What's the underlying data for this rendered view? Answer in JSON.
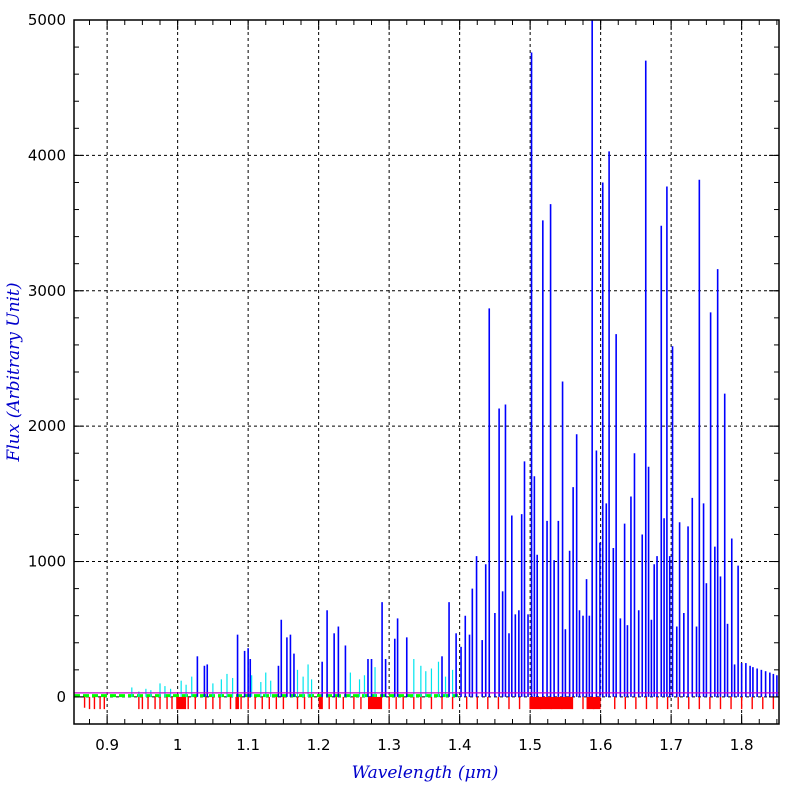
{
  "chart_data": {
    "type": "line",
    "xlabel": "Wavelength (μm)",
    "ylabel": "Flux (Arbitrary Unit)",
    "xlim": [
      0.853,
      1.853
    ],
    "ylim": [
      -200,
      5000
    ],
    "x_ticks": [
      0.9,
      1.0,
      1.1,
      1.2,
      1.3,
      1.4,
      1.5,
      1.6,
      1.7,
      1.8
    ],
    "x_tick_labels": [
      "0.9",
      "1",
      "1.1",
      "1.2",
      "1.3",
      "1.4",
      "1.5",
      "1.6",
      "1.7",
      "1.8"
    ],
    "y_ticks": [
      0,
      1000,
      2000,
      3000,
      4000,
      5000
    ],
    "y_tick_labels": [
      "0",
      "1000",
      "2000",
      "3000",
      "4000",
      "5000"
    ],
    "grid": true,
    "colors": {
      "emission_lines": "#0000ff",
      "faint_lines": "#00e5ee",
      "continuum": "#00ff00",
      "absorption_lines": "#ff0000",
      "reference_line": "#cc00cc",
      "axis_title": "#0000cc"
    },
    "reference_level": 30,
    "series": [
      {
        "style": "emission",
        "x": [
          1.028,
          1.038,
          1.042,
          1.085,
          1.095,
          1.1,
          1.103,
          1.143,
          1.147,
          1.155,
          1.16,
          1.165,
          1.205,
          1.212,
          1.222,
          1.228,
          1.238,
          1.27,
          1.275,
          1.29,
          1.295,
          1.308,
          1.312,
          1.325,
          1.375,
          1.385,
          1.395,
          1.402,
          1.408,
          1.414,
          1.418,
          1.424,
          1.432,
          1.437,
          1.442,
          1.45,
          1.456,
          1.461,
          1.465,
          1.47,
          1.474,
          1.479,
          1.484,
          1.488,
          1.492,
          1.497,
          1.502,
          1.506,
          1.51,
          1.518,
          1.524,
          1.529,
          1.534,
          1.54,
          1.546,
          1.55,
          1.556,
          1.561,
          1.566,
          1.57,
          1.575,
          1.58,
          1.584,
          1.588,
          1.594,
          1.599,
          1.603,
          1.608,
          1.612,
          1.618,
          1.622,
          1.628,
          1.634,
          1.638,
          1.643,
          1.648,
          1.654,
          1.659,
          1.664,
          1.668,
          1.672,
          1.676,
          1.68,
          1.686,
          1.69,
          1.694,
          1.698,
          1.702,
          1.708,
          1.712,
          1.718,
          1.724,
          1.73,
          1.736,
          1.74,
          1.746,
          1.75,
          1.756,
          1.762,
          1.766,
          1.77,
          1.776,
          1.78,
          1.786,
          1.79,
          1.795,
          1.8,
          1.806,
          1.812,
          1.816,
          1.822,
          1.828,
          1.834,
          1.84,
          1.845,
          1.85
        ],
        "y": [
          300,
          230,
          240,
          460,
          340,
          360,
          280,
          230,
          570,
          440,
          460,
          320,
          260,
          640,
          470,
          520,
          380,
          280,
          280,
          700,
          280,
          430,
          580,
          440,
          300,
          700,
          470,
          370,
          600,
          460,
          800,
          1040,
          420,
          980,
          2870,
          620,
          2130,
          780,
          2160,
          470,
          1340,
          610,
          640,
          1350,
          1740,
          610,
          4760,
          1630,
          1050,
          3520,
          1300,
          3640,
          1010,
          1300,
          2330,
          500,
          1080,
          1550,
          1940,
          640,
          600,
          870,
          600,
          5000,
          1820,
          1140,
          3800,
          1430,
          4030,
          1100,
          2680,
          580,
          1280,
          530,
          1480,
          1800,
          640,
          1200,
          4700,
          1700,
          570,
          980,
          1040,
          3480,
          1320,
          3770,
          1040,
          2590,
          520,
          1290,
          620,
          1260,
          1470,
          520,
          3820,
          1430,
          840,
          2840,
          1110,
          3160,
          890,
          2240,
          540,
          1170,
          240,
          970,
          250,
          250,
          230,
          220,
          210,
          200,
          190,
          180,
          170,
          160
        ]
      },
      {
        "style": "faint",
        "x": [
          0.935,
          0.945,
          0.955,
          0.962,
          0.975,
          0.982,
          0.99,
          1.005,
          1.012,
          1.02,
          1.05,
          1.062,
          1.07,
          1.078,
          1.105,
          1.118,
          1.125,
          1.132,
          1.17,
          1.178,
          1.185,
          1.19,
          1.245,
          1.258,
          1.265,
          1.28,
          1.335,
          1.345,
          1.352,
          1.36,
          1.37,
          1.38,
          1.39
        ],
        "y": [
          70,
          40,
          60,
          50,
          100,
          80,
          60,
          120,
          90,
          150,
          100,
          130,
          170,
          140,
          160,
          110,
          180,
          120,
          200,
          150,
          240,
          130,
          180,
          130,
          160,
          220,
          280,
          230,
          190,
          210,
          260,
          150,
          200
        ]
      },
      {
        "style": "continuum",
        "value": 10,
        "x": [
          0.853,
          1.4
        ]
      },
      {
        "style": "absorption",
        "x": [
          0.868,
          0.875,
          0.882,
          0.89,
          0.896,
          0.945,
          0.95,
          0.958,
          0.968,
          0.975,
          0.985,
          0.992,
          1.0,
          1.015,
          1.025,
          1.04,
          1.05,
          1.06,
          1.075,
          1.083,
          1.09,
          1.1,
          1.11,
          1.12,
          1.13,
          1.14,
          1.15,
          1.17,
          1.18,
          1.19,
          1.215,
          1.225,
          1.235,
          1.25,
          1.26,
          1.3,
          1.31,
          1.32,
          1.335,
          1.345,
          1.36,
          1.375,
          1.39,
          1.41,
          1.425,
          1.44,
          1.455,
          1.47,
          1.485,
          1.5,
          1.515,
          1.53,
          1.545,
          1.56,
          1.575,
          1.59,
          1.62,
          1.635,
          1.65,
          1.665,
          1.68,
          1.695,
          1.71,
          1.725,
          1.74,
          1.755,
          1.77,
          1.785,
          1.8,
          1.815,
          1.83,
          1.845
        ],
        "y": [
          -80,
          -90,
          -90,
          -90,
          -90,
          -90,
          -90,
          -90,
          -90,
          -90,
          -90,
          -90,
          -90,
          -90,
          -90,
          -90,
          -90,
          -90,
          -90,
          -90,
          -90,
          -90,
          -90,
          -90,
          -90,
          -90,
          -90,
          -90,
          -90,
          -90,
          -90,
          -90,
          -90,
          -90,
          -90,
          -90,
          -90,
          -90,
          -90,
          -90,
          -90,
          -90,
          -90,
          -90,
          -90,
          -90,
          -90,
          -90,
          -90,
          -90,
          -90,
          -90,
          -90,
          -90,
          -90,
          -90,
          -90,
          -90,
          -90,
          -90,
          -90,
          -90,
          -90,
          -90,
          -90,
          -90,
          -90,
          -90,
          -90,
          -90,
          -90,
          -90
        ]
      },
      {
        "style": "absorption-block",
        "x": [
          0.998,
          1.012,
          1.082,
          1.087,
          1.2,
          1.206,
          1.27,
          1.29,
          1.5,
          1.56,
          1.58,
          1.6
        ],
        "y": [
          -90,
          -90,
          -90,
          -90,
          -90,
          -90,
          -90,
          -90,
          -90,
          -90,
          -90,
          -90
        ]
      }
    ]
  }
}
